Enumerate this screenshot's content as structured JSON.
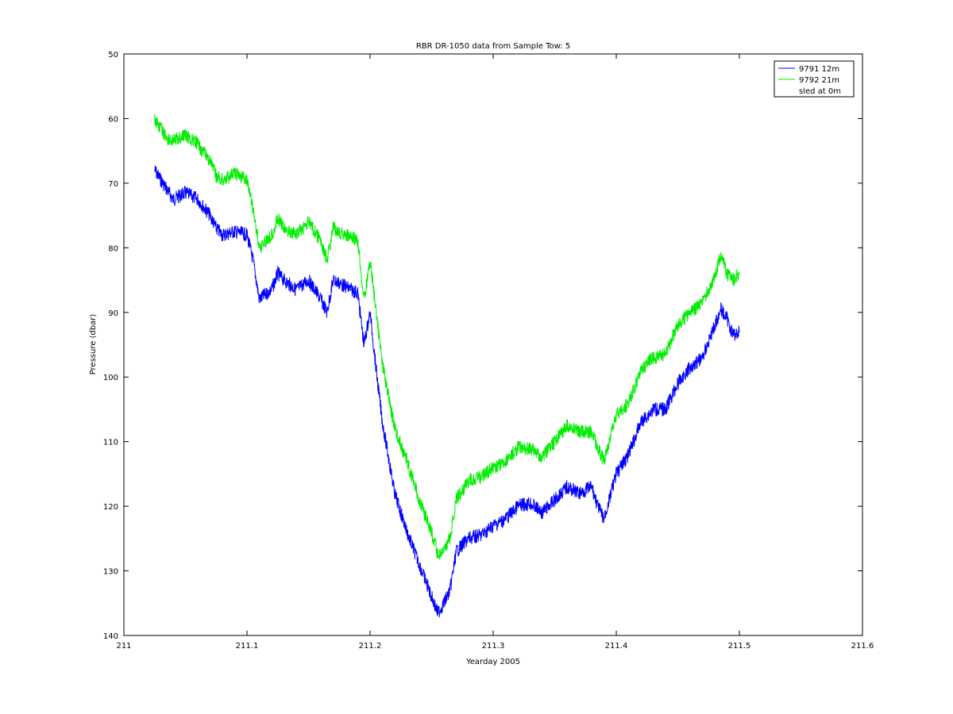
{
  "chart_data": {
    "type": "line",
    "title": "RBR DR-1050 data from Sample Tow: 5",
    "xlabel": "Yearday 2005",
    "ylabel": "Pressure (dbar)",
    "xlim": [
      211,
      211.6
    ],
    "ylim": [
      50,
      140
    ],
    "y_reversed": true,
    "xticks": [
      211,
      211.1,
      211.2,
      211.3,
      211.4,
      211.5,
      211.6
    ],
    "xtick_labels": [
      "211",
      "211.1",
      "211.2",
      "211.3",
      "211.4",
      "211.5",
      "211.6"
    ],
    "yticks": [
      50,
      60,
      70,
      80,
      90,
      100,
      110,
      120,
      130,
      140
    ],
    "ytick_labels": [
      "50",
      "60",
      "70",
      "80",
      "90",
      "100",
      "110",
      "120",
      "130",
      "140"
    ],
    "grid": false,
    "legend_position": "top-right",
    "series": [
      {
        "name": "9791 12m",
        "color": "#0000ff",
        "x": [
          211.025,
          211.035,
          211.04,
          211.05,
          211.06,
          211.07,
          211.075,
          211.08,
          211.09,
          211.1,
          211.105,
          211.11,
          211.12,
          211.125,
          211.13,
          211.14,
          211.15,
          211.16,
          211.165,
          211.17,
          211.18,
          211.19,
          211.195,
          211.2,
          211.205,
          211.21,
          211.22,
          211.23,
          211.24,
          211.25,
          211.255,
          211.26,
          211.265,
          211.27,
          211.28,
          211.29,
          211.3,
          211.31,
          211.32,
          211.33,
          211.34,
          211.35,
          211.36,
          211.37,
          211.38,
          211.385,
          211.39,
          211.4,
          211.41,
          211.42,
          211.43,
          211.44,
          211.45,
          211.46,
          211.47,
          211.48,
          211.485,
          211.49,
          211.495,
          211.5
        ],
        "y": [
          68,
          71,
          72.5,
          71.5,
          72.5,
          75,
          77,
          78,
          77.5,
          78,
          82,
          88,
          86.5,
          84,
          85,
          86.5,
          85,
          88,
          90,
          85,
          86,
          87,
          95,
          90,
          99,
          107,
          118,
          124,
          129,
          134,
          136.5,
          135,
          133,
          127,
          125,
          124.5,
          123,
          122,
          120,
          119.5,
          121,
          119,
          117,
          118,
          117,
          120,
          122,
          115,
          112,
          107,
          105,
          105,
          101,
          98.5,
          97,
          92,
          89.5,
          91,
          93.5,
          93
        ]
      },
      {
        "name": "9792 21m",
        "color": "#00ee00",
        "x": [
          211.025,
          211.035,
          211.04,
          211.05,
          211.06,
          211.07,
          211.075,
          211.08,
          211.09,
          211.1,
          211.105,
          211.11,
          211.12,
          211.125,
          211.13,
          211.14,
          211.15,
          211.16,
          211.165,
          211.17,
          211.18,
          211.19,
          211.195,
          211.2,
          211.205,
          211.21,
          211.22,
          211.23,
          211.24,
          211.25,
          211.255,
          211.26,
          211.265,
          211.27,
          211.28,
          211.29,
          211.3,
          211.31,
          211.32,
          211.33,
          211.34,
          211.35,
          211.36,
          211.37,
          211.38,
          211.385,
          211.39,
          211.4,
          211.41,
          211.42,
          211.43,
          211.44,
          211.45,
          211.46,
          211.47,
          211.48,
          211.485,
          211.49,
          211.495,
          211.5
        ],
        "y": [
          60,
          63,
          63.5,
          62.5,
          64,
          66.5,
          69,
          69.5,
          68.5,
          69.5,
          74,
          80,
          78,
          75.5,
          77,
          78,
          76,
          79,
          82,
          77,
          78,
          79,
          88,
          82,
          90,
          98,
          108,
          113,
          119,
          124,
          127.5,
          127,
          125,
          119,
          116,
          115.5,
          114,
          113,
          111,
          111,
          112.5,
          110,
          107.5,
          108.5,
          108.5,
          111,
          113,
          106,
          104,
          99,
          97,
          96.5,
          92,
          90,
          88.5,
          84.5,
          81,
          84,
          85,
          84
        ]
      },
      {
        "name": "sled at 0m",
        "color": "#ffffff",
        "x": [],
        "y": []
      }
    ]
  }
}
